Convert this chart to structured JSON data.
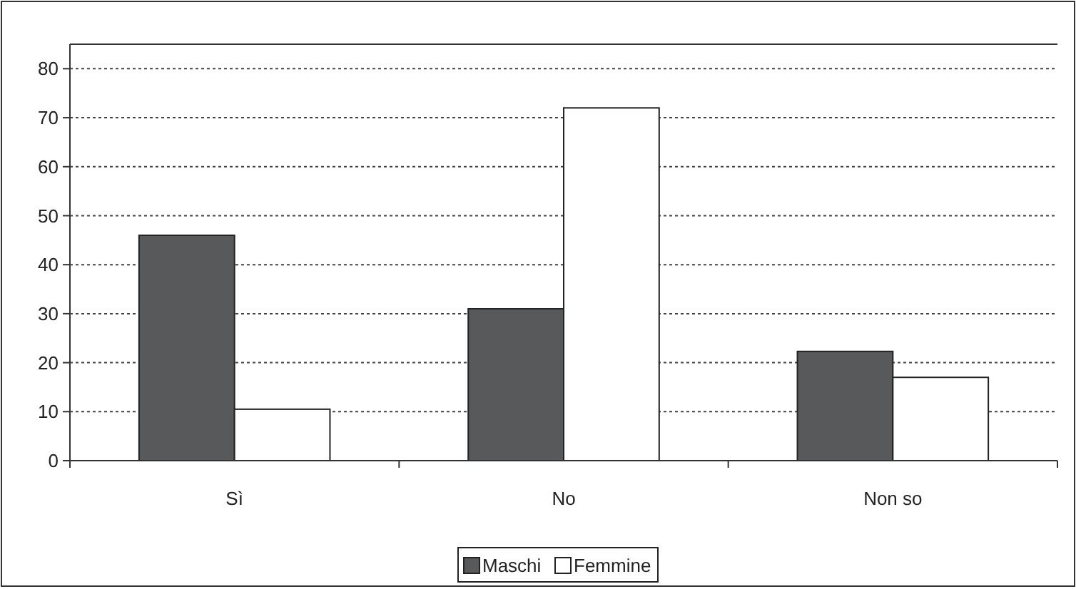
{
  "chart_data": {
    "type": "bar",
    "categories": [
      "Sì",
      "No",
      "Non so"
    ],
    "series": [
      {
        "name": "Maschi",
        "color": "#58595b",
        "values": [
          46,
          31,
          22.3
        ]
      },
      {
        "name": "Femmine",
        "color": "#ffffff",
        "values": [
          10.5,
          72,
          17
        ]
      }
    ],
    "ylim": [
      0,
      85
    ],
    "yticks": [
      0,
      10,
      20,
      30,
      40,
      50,
      60,
      70,
      80
    ],
    "grid": "y",
    "legend": "bottom"
  }
}
